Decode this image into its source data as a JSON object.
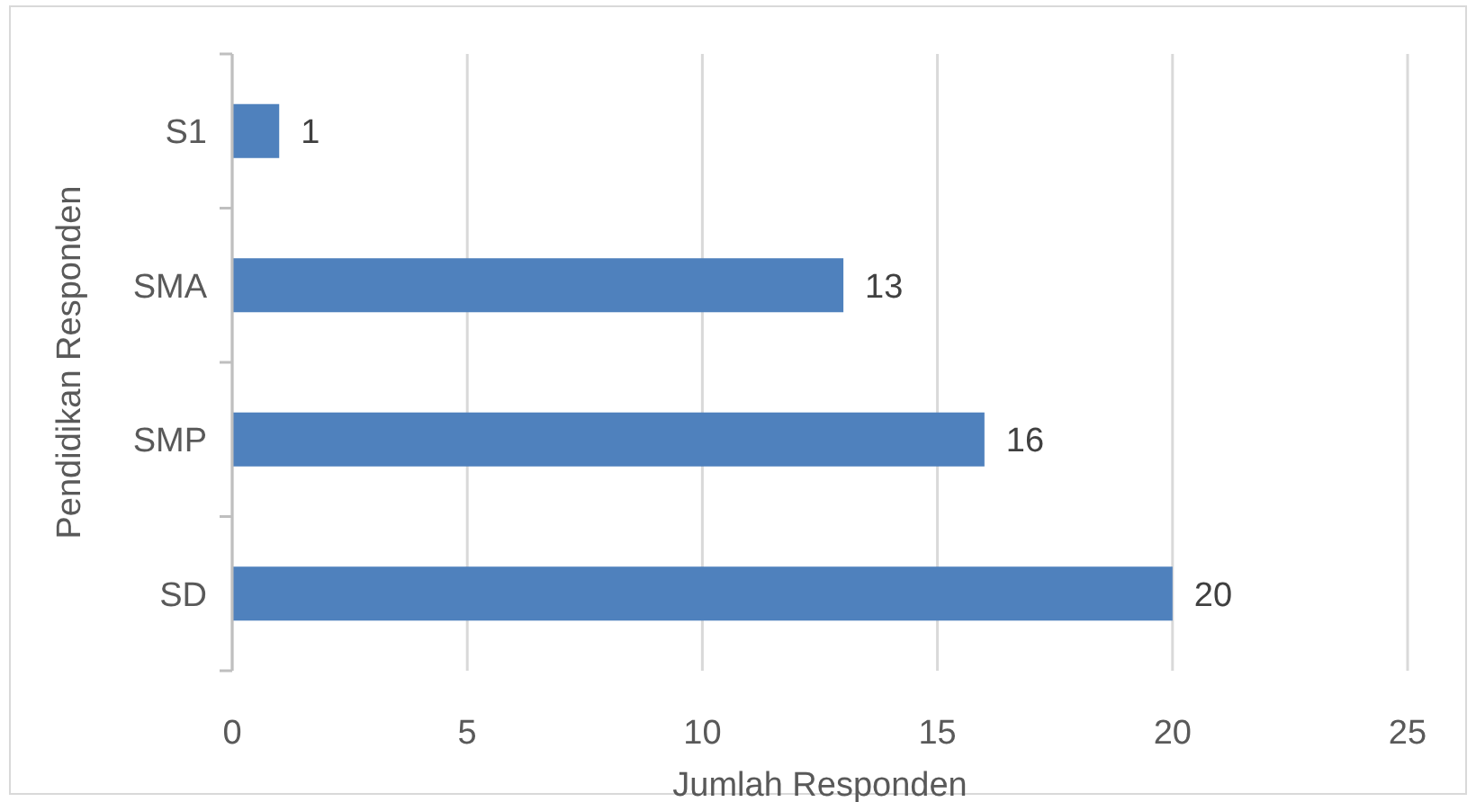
{
  "chart_data": {
    "type": "bar",
    "orientation": "horizontal",
    "xlabel": "Jumlah Responden",
    "ylabel": "Pendidikan Responden",
    "categories": [
      "S1",
      "SMA",
      "SMP",
      "SD"
    ],
    "values": [
      1,
      13,
      16,
      20
    ],
    "color": "#4f81bd",
    "xlim": [
      0,
      25
    ],
    "xticks": [
      0,
      5,
      10,
      15,
      20,
      25
    ],
    "grid": "x",
    "data_labels": true
  }
}
